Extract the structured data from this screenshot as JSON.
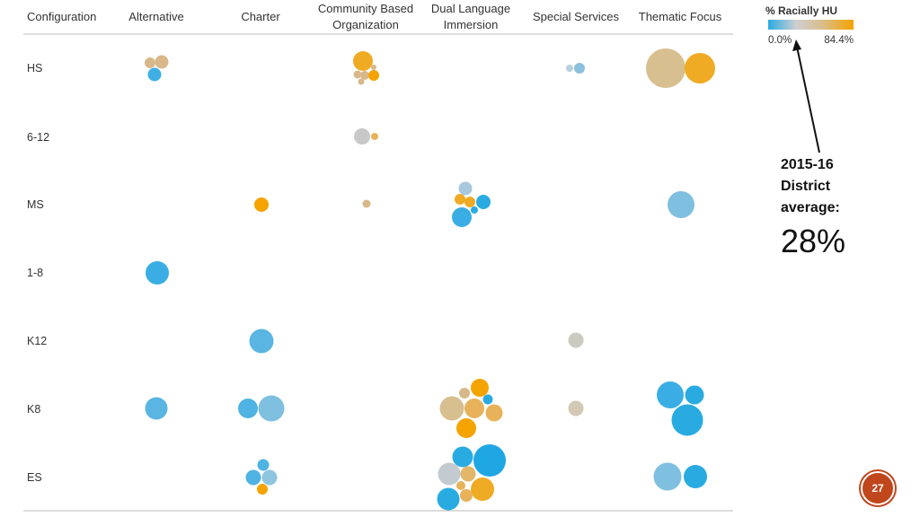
{
  "chart_data": {
    "type": "scatter",
    "encoding": "bubble-grid",
    "header_label": "Configuration",
    "columns": [
      [
        "Alternative"
      ],
      [
        "Charter"
      ],
      [
        "Community Based",
        "Organization"
      ],
      [
        "Dual Language",
        "Immersion"
      ],
      [
        "Special Services"
      ],
      [
        "Thematic Focus"
      ]
    ],
    "rows": [
      "HS",
      "6-12",
      "MS",
      "1-8",
      "K12",
      "K8",
      "ES"
    ],
    "color_legend": {
      "title": "% Racially HU",
      "min_label": "0.0%",
      "max_label": "84.4%",
      "min": 0.0,
      "max": 84.4,
      "colors": [
        "#29abe2",
        "#cfcfcf",
        "#f5a300"
      ]
    },
    "grid": false
  },
  "annotation": {
    "lines": [
      "2015-16",
      "District",
      "average:"
    ],
    "value_label": "28%",
    "value": 28
  },
  "page_number": "27",
  "colors": {
    "blue": "#29abe2",
    "lightblue": "#7fbfe0",
    "grey": "#c8c8c8",
    "tan": "#d8b88a",
    "orange": "#f5a300",
    "badge": "#c0461c"
  }
}
